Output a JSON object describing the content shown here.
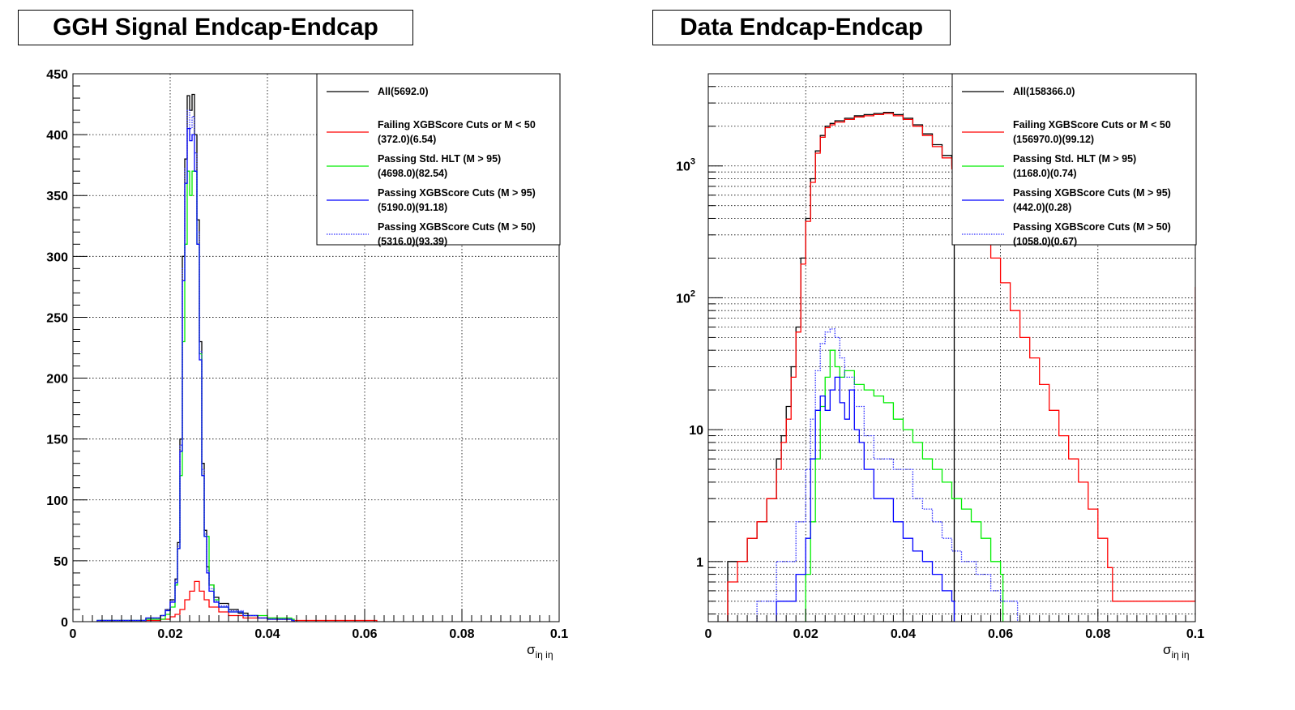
{
  "colors": {
    "all": "#000000",
    "failing": "#ff0000",
    "hlt": "#00ee00",
    "pass95": "#0000ff",
    "pass50": "#3030ff"
  },
  "chart_data": [
    {
      "type": "line",
      "title": "GGH Signal Endcap-Endcap",
      "xlabel": "σ_iη iη",
      "xlabel_main": "σ",
      "xlabel_sub": "iη iη",
      "xlim": [
        0,
        0.1
      ],
      "ylim": [
        0,
        450
      ],
      "yscale": "linear",
      "xticks": [
        {
          "v": 0,
          "label": "0"
        },
        {
          "v": 0.02,
          "label": "0.02"
        },
        {
          "v": 0.04,
          "label": "0.04"
        },
        {
          "v": 0.06,
          "label": "0.06"
        },
        {
          "v": 0.08,
          "label": "0.08"
        },
        {
          "v": 0.1,
          "label": "0.1"
        }
      ],
      "yticks": [
        {
          "v": 0,
          "label": "0"
        },
        {
          "v": 50,
          "label": "50"
        },
        {
          "v": 100,
          "label": "100"
        },
        {
          "v": 150,
          "label": "150"
        },
        {
          "v": 200,
          "label": "200"
        },
        {
          "v": 250,
          "label": "250"
        },
        {
          "v": 300,
          "label": "300"
        },
        {
          "v": 350,
          "label": "350"
        },
        {
          "v": 400,
          "label": "400"
        },
        {
          "v": 450,
          "label": "450"
        }
      ],
      "grid": true,
      "legend_position": "top-right",
      "series": [
        {
          "key": "all",
          "name": "All(5692.0)",
          "label2": "",
          "style": "solid",
          "x": [
            0.005,
            0.01,
            0.015,
            0.018,
            0.019,
            0.02,
            0.021,
            0.0215,
            0.022,
            0.0225,
            0.023,
            0.0235,
            0.024,
            0.0245,
            0.025,
            0.0255,
            0.026,
            0.0265,
            0.027,
            0.0275,
            0.028,
            0.029,
            0.03,
            0.032,
            0.034,
            0.036,
            0.038,
            0.04,
            0.042,
            0.045
          ],
          "y": [
            1,
            1,
            3,
            5,
            10,
            18,
            35,
            65,
            150,
            300,
            380,
            432,
            420,
            433,
            400,
            330,
            230,
            130,
            75,
            45,
            30,
            20,
            15,
            10,
            7,
            5,
            3,
            3,
            2,
            1
          ]
        },
        {
          "key": "failing",
          "name": "Failing XGBScore Cuts or M < 50",
          "label2": "(372.0)(6.54)",
          "style": "solid",
          "x": [
            0.015,
            0.018,
            0.02,
            0.021,
            0.022,
            0.023,
            0.024,
            0.025,
            0.026,
            0.027,
            0.028,
            0.03,
            0.032,
            0.035,
            0.04,
            0.045,
            0.055,
            0.062
          ],
          "y": [
            1,
            2,
            4,
            6,
            10,
            18,
            25,
            33,
            25,
            18,
            12,
            8,
            5,
            3,
            2,
            1,
            1,
            1
          ]
        },
        {
          "key": "hlt",
          "name": "Passing Std. HLT (M > 95)",
          "label2": "(4698.0)(82.54)",
          "style": "solid",
          "x": [
            0.005,
            0.015,
            0.019,
            0.02,
            0.021,
            0.0215,
            0.022,
            0.0225,
            0.023,
            0.0235,
            0.024,
            0.0245,
            0.025,
            0.0255,
            0.026,
            0.0265,
            0.027,
            0.028,
            0.029,
            0.03,
            0.032,
            0.035,
            0.04,
            0.045
          ],
          "y": [
            1,
            2,
            6,
            12,
            30,
            60,
            120,
            230,
            310,
            370,
            350,
            370,
            370,
            310,
            220,
            120,
            70,
            30,
            18,
            12,
            8,
            5,
            3,
            2
          ]
        },
        {
          "key": "pass95",
          "name": "Passing XGBScore Cuts (M > 95)",
          "label2": "(5190.0)(91.18)",
          "style": "solid",
          "x": [
            0.005,
            0.015,
            0.018,
            0.019,
            0.02,
            0.021,
            0.0215,
            0.022,
            0.0225,
            0.023,
            0.0235,
            0.024,
            0.0245,
            0.025,
            0.0255,
            0.026,
            0.0265,
            0.027,
            0.0275,
            0.028,
            0.029,
            0.03,
            0.032,
            0.035,
            0.038,
            0.04,
            0.045
          ],
          "y": [
            1,
            3,
            5,
            9,
            16,
            32,
            60,
            140,
            280,
            360,
            405,
            395,
            400,
            370,
            310,
            215,
            120,
            70,
            40,
            25,
            16,
            12,
            8,
            5,
            3,
            2,
            1
          ]
        },
        {
          "key": "pass50",
          "name": "Passing XGBScore Cuts (M > 50)",
          "label2": "(5316.0)(93.39)",
          "style": "dotted",
          "x": [
            0.005,
            0.015,
            0.018,
            0.019,
            0.02,
            0.021,
            0.0215,
            0.022,
            0.0225,
            0.023,
            0.0235,
            0.024,
            0.0245,
            0.025,
            0.0255,
            0.026,
            0.0265,
            0.027,
            0.0275,
            0.028,
            0.029,
            0.03,
            0.032,
            0.035,
            0.038,
            0.04,
            0.045
          ],
          "y": [
            1,
            3,
            5,
            10,
            17,
            34,
            62,
            145,
            290,
            372,
            420,
            405,
            415,
            385,
            320,
            222,
            125,
            72,
            42,
            27,
            17,
            13,
            9,
            5,
            3,
            2,
            1
          ]
        }
      ]
    },
    {
      "type": "line",
      "title": "Data Endcap-Endcap",
      "xlabel": "σ_iη iη",
      "xlabel_main": "σ",
      "xlabel_sub": "iη iη",
      "xlim": [
        0,
        0.1
      ],
      "ylim": [
        0.35,
        5000
      ],
      "yscale": "log",
      "xticks": [
        {
          "v": 0,
          "label": "0"
        },
        {
          "v": 0.02,
          "label": "0.02"
        },
        {
          "v": 0.04,
          "label": "0.04"
        },
        {
          "v": 0.06,
          "label": "0.06"
        },
        {
          "v": 0.08,
          "label": "0.08"
        },
        {
          "v": 0.1,
          "label": "0.1"
        }
      ],
      "yticks": [
        {
          "v": 1,
          "label": "1"
        },
        {
          "v": 10,
          "label": "10"
        },
        {
          "v": 100,
          "label": "10",
          "exp": "2"
        },
        {
          "v": 1000,
          "label": "10",
          "exp": "3"
        }
      ],
      "grid": true,
      "legend_position": "top-right",
      "series": [
        {
          "key": "all",
          "name": "All(158366.0)",
          "label2": "",
          "style": "solid",
          "x": [
            0.004,
            0.008,
            0.01,
            0.012,
            0.014,
            0.015,
            0.016,
            0.017,
            0.018,
            0.019,
            0.02,
            0.021,
            0.022,
            0.023,
            0.024,
            0.025,
            0.026,
            0.028,
            0.03,
            0.032,
            0.034,
            0.036,
            0.038,
            0.04,
            0.042,
            0.044,
            0.046,
            0.048,
            0.05
          ],
          "y": [
            1,
            1.5,
            2,
            3,
            6,
            9,
            15,
            30,
            60,
            200,
            400,
            800,
            1300,
            1700,
            2000,
            2100,
            2200,
            2300,
            2400,
            2450,
            2500,
            2550,
            2450,
            2300,
            2050,
            1750,
            1450,
            1200,
            1000
          ]
        },
        {
          "key": "failing",
          "name": "Failing XGBScore Cuts or M < 50",
          "label2": "(156970.0)(99.12)",
          "style": "solid",
          "x": [
            0.004,
            0.006,
            0.008,
            0.01,
            0.012,
            0.014,
            0.015,
            0.016,
            0.017,
            0.018,
            0.019,
            0.02,
            0.021,
            0.022,
            0.023,
            0.024,
            0.025,
            0.026,
            0.028,
            0.03,
            0.032,
            0.034,
            0.036,
            0.038,
            0.04,
            0.042,
            0.044,
            0.046,
            0.048,
            0.05,
            0.052,
            0.054,
            0.056,
            0.058,
            0.06,
            0.062,
            0.064,
            0.066,
            0.068,
            0.07,
            0.072,
            0.074,
            0.076,
            0.078,
            0.08,
            0.082,
            0.083,
            0.1
          ],
          "y": [
            0.7,
            1,
            1.5,
            2,
            3,
            5,
            8,
            12,
            25,
            55,
            180,
            380,
            750,
            1250,
            1650,
            1950,
            2050,
            2150,
            2250,
            2350,
            2400,
            2450,
            2500,
            2400,
            2250,
            2000,
            1700,
            1400,
            1150,
            950,
            700,
            480,
            320,
            200,
            130,
            80,
            50,
            35,
            22,
            14,
            9,
            6,
            4,
            2.5,
            1.5,
            0.9,
            0.5,
            120
          ]
        },
        {
          "key": "hlt",
          "name": "Passing Std. HLT (M > 95)",
          "label2": "(1168.0)(0.74)",
          "style": "solid",
          "x": [
            0.02,
            0.021,
            0.022,
            0.023,
            0.024,
            0.025,
            0.026,
            0.027,
            0.028,
            0.03,
            0.032,
            0.034,
            0.036,
            0.038,
            0.04,
            0.042,
            0.044,
            0.046,
            0.048,
            0.05,
            0.052,
            0.054,
            0.056,
            0.058,
            0.06
          ],
          "y": [
            0.8,
            2,
            6,
            15,
            25,
            40,
            30,
            25,
            28,
            22,
            20,
            18,
            16,
            12,
            10,
            8,
            6,
            5,
            4,
            3,
            2.5,
            2,
            1.5,
            1,
            0.8
          ]
        },
        {
          "key": "pass95",
          "name": "Passing XGBScore Cuts (M > 95)",
          "label2": "(442.0)(0.28)",
          "style": "solid",
          "x": [
            0.014,
            0.018,
            0.02,
            0.021,
            0.022,
            0.023,
            0.024,
            0.025,
            0.026,
            0.027,
            0.028,
            0.029,
            0.03,
            0.031,
            0.032,
            0.034,
            0.036,
            0.038,
            0.04,
            0.042,
            0.044,
            0.046,
            0.048,
            0.05
          ],
          "y": [
            0.5,
            0.8,
            1.5,
            6,
            14,
            18,
            14,
            20,
            25,
            16,
            12,
            20,
            10,
            8,
            5,
            3,
            3,
            2,
            1.5,
            1.2,
            1,
            0.8,
            0.6,
            0.5
          ]
        },
        {
          "key": "pass50",
          "name": "Passing XGBScore Cuts (M > 50)",
          "label2": "(1058.0)(0.67)",
          "style": "dotted",
          "x": [
            0.01,
            0.014,
            0.018,
            0.02,
            0.021,
            0.022,
            0.023,
            0.024,
            0.025,
            0.026,
            0.027,
            0.028,
            0.03,
            0.032,
            0.034,
            0.036,
            0.038,
            0.04,
            0.042,
            0.044,
            0.046,
            0.048,
            0.05,
            0.052,
            0.055,
            0.058,
            0.06,
            0.063
          ],
          "y": [
            0.5,
            1,
            2,
            5,
            12,
            28,
            45,
            55,
            58,
            50,
            35,
            25,
            15,
            9,
            6,
            6,
            5,
            5,
            3,
            2.5,
            2,
            1.5,
            1.2,
            1,
            0.8,
            0.6,
            0.5,
            0.5
          ]
        }
      ]
    }
  ]
}
